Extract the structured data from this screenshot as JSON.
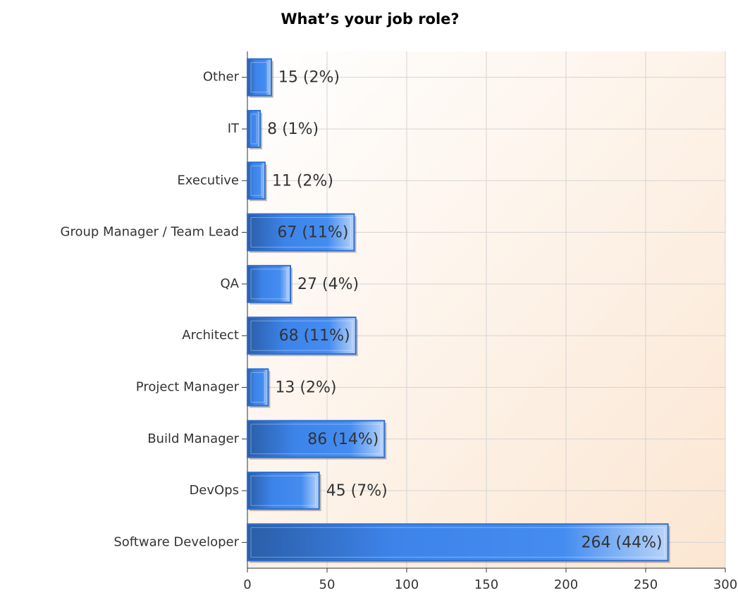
{
  "chart_data": {
    "type": "bar",
    "orientation": "horizontal",
    "title": "What’s your job role?",
    "categories": [
      "Other",
      "IT",
      "Executive",
      "Group Manager / Team Lead",
      "QA",
      "Architect",
      "Project Manager",
      "Build Manager",
      "DevOps",
      "Software Developer"
    ],
    "values": [
      15,
      8,
      11,
      67,
      27,
      68,
      13,
      86,
      45,
      264
    ],
    "value_labels": [
      "15 (2%)",
      "8 (1%)",
      "11 (2%)",
      "67 (11%)",
      "27 (4%)",
      "68 (11%)",
      "13 (2%)",
      "86 (14%)",
      "45 (7%)",
      "264 (44%)"
    ],
    "color": "#3f86ec",
    "xlim": [
      0,
      300
    ],
    "xticks": [
      0,
      50,
      100,
      150,
      200,
      250,
      300
    ],
    "grid": true
  }
}
